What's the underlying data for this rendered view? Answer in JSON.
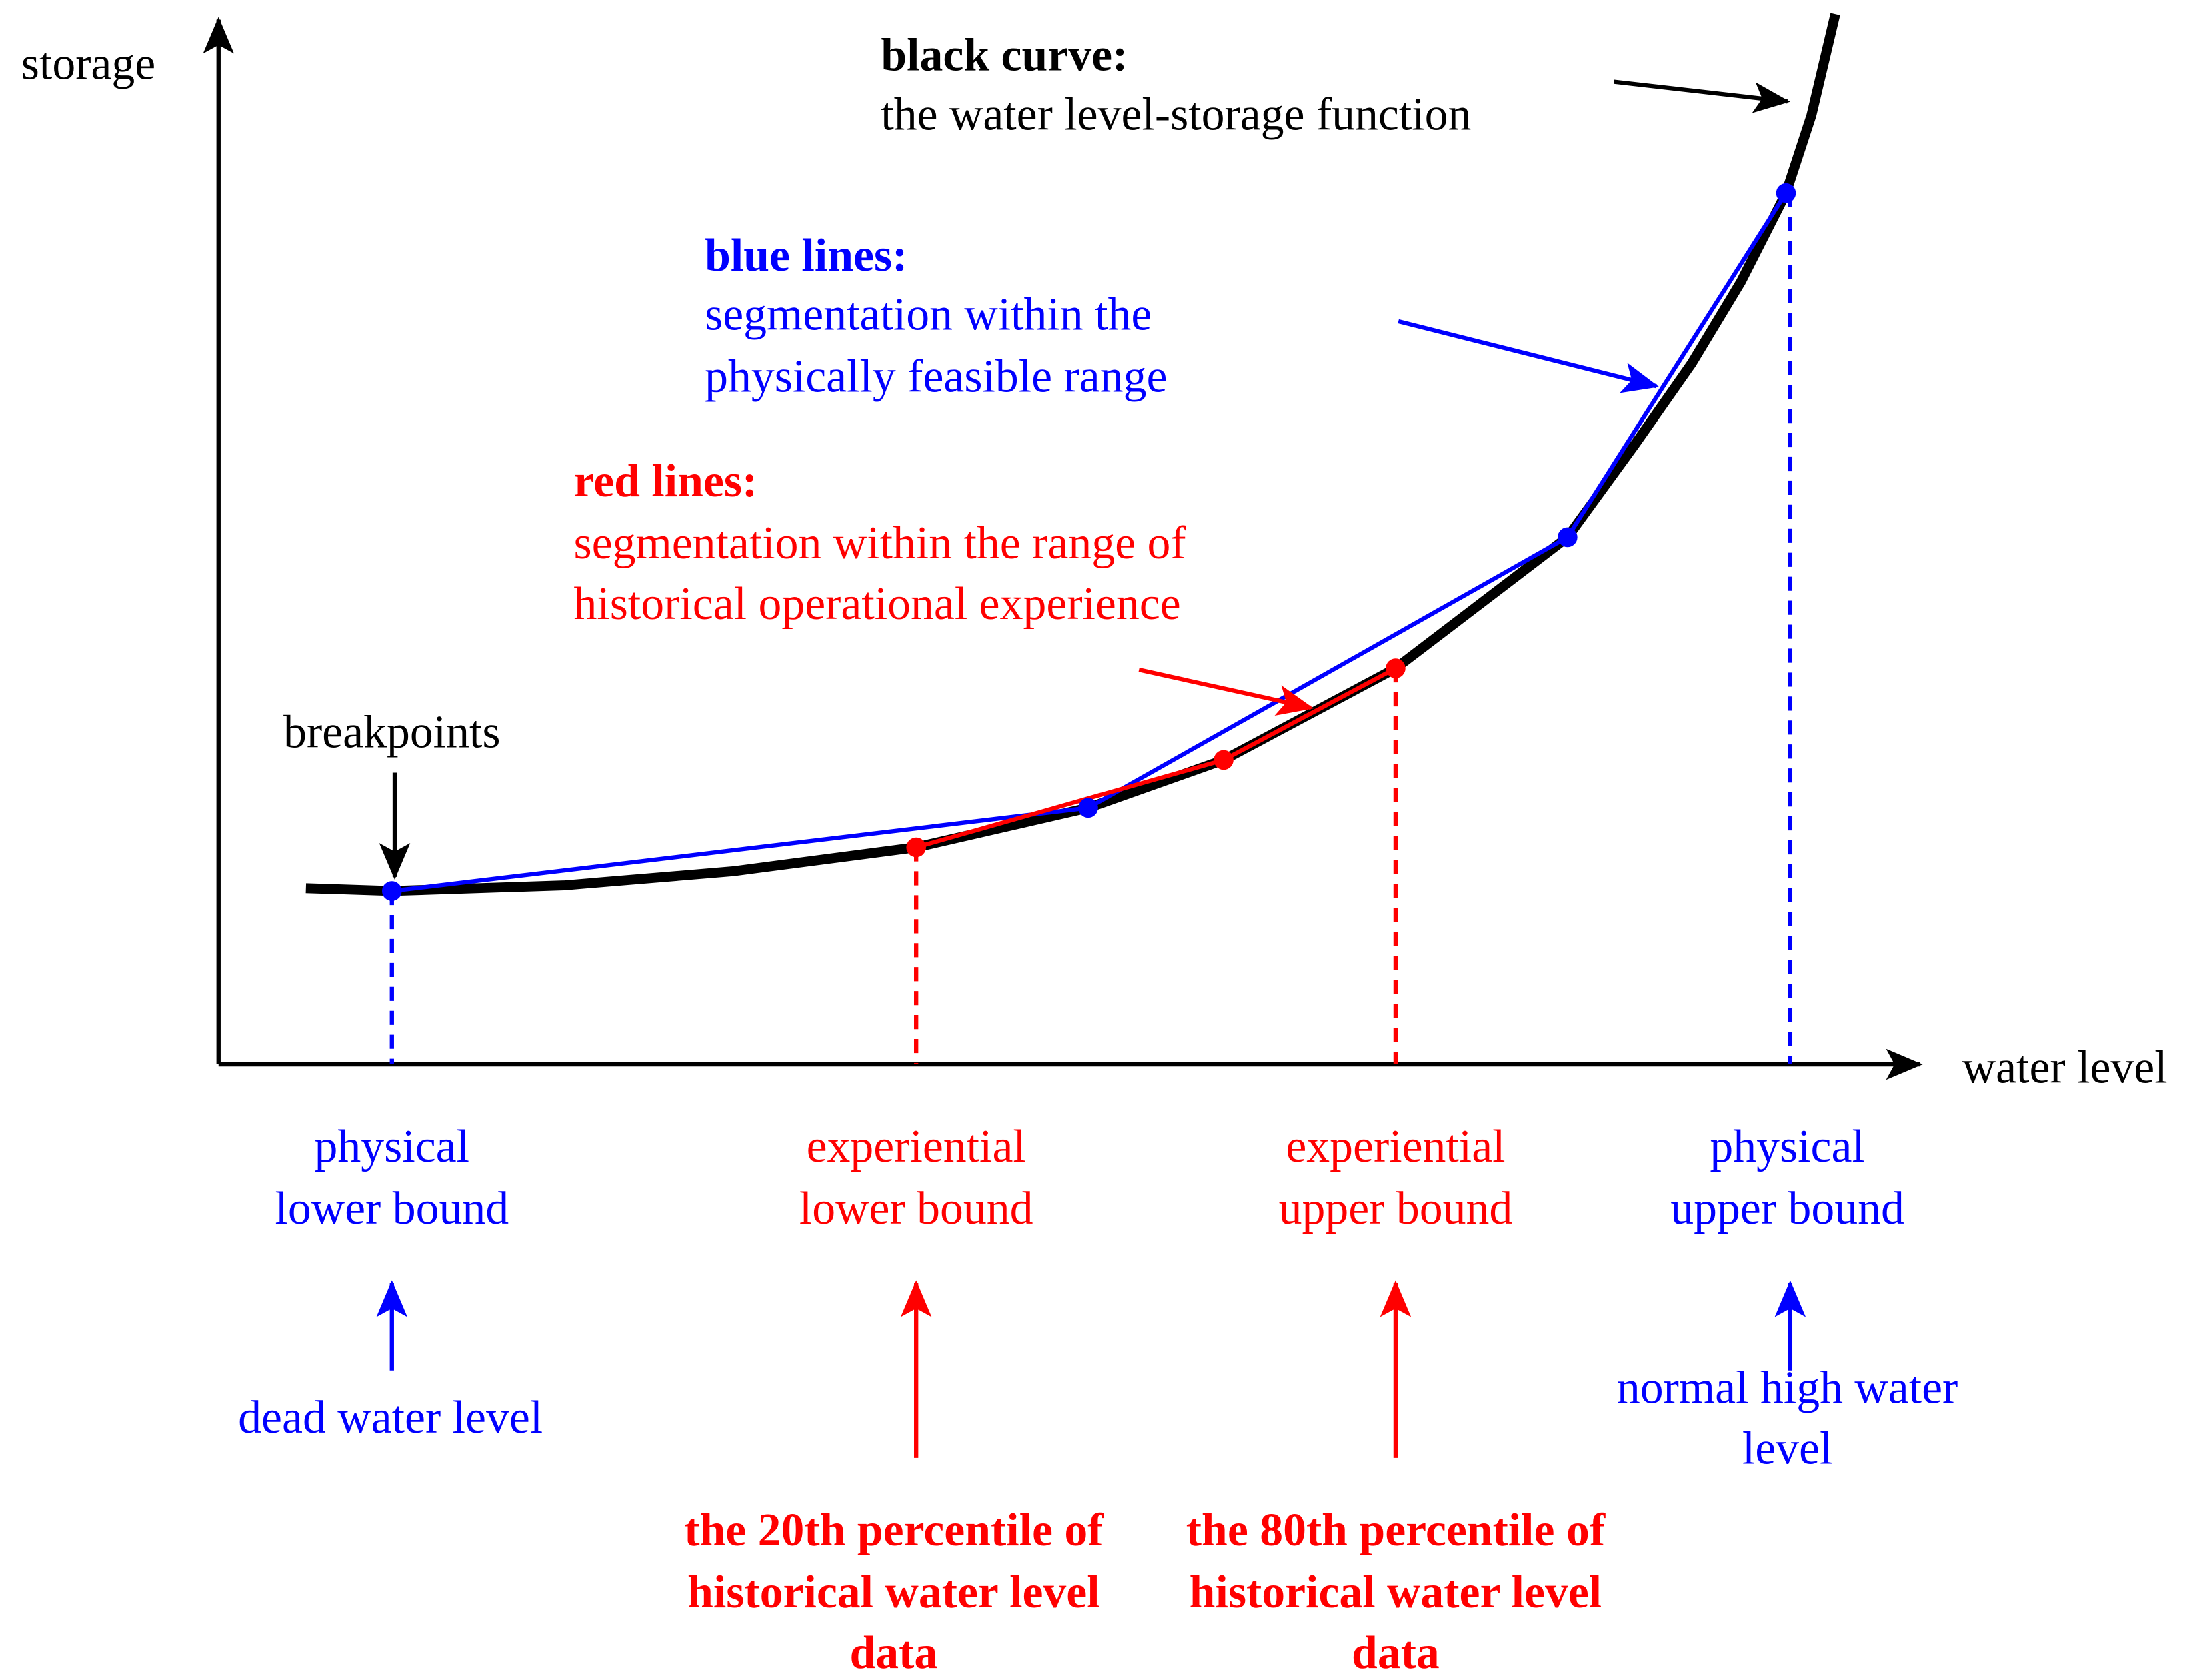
{
  "axes": {
    "y_label": "storage",
    "x_label": "water level"
  },
  "legend": {
    "black": {
      "title": "black curve:",
      "text": "the water level-storage function"
    },
    "blue": {
      "title": "blue lines:",
      "lines": [
        "segmentation within the",
        "physically feasible range"
      ]
    },
    "red": {
      "title": "red lines:",
      "lines": [
        "segmentation within the range of",
        "historical operational experience"
      ]
    }
  },
  "breakpoints_label": "breakpoints",
  "bounds": [
    {
      "lines": [
        "physical",
        "lower bound"
      ],
      "source": [
        "dead water level"
      ]
    },
    {
      "lines": [
        "experiential",
        "lower bound"
      ],
      "source": [
        "the 20th percentile of",
        "historical water level",
        "data"
      ]
    },
    {
      "lines": [
        "experiential",
        "upper bound"
      ],
      "source": [
        "the 80th percentile of",
        "historical water level",
        "data"
      ]
    },
    {
      "lines": [
        "physical",
        "upper bound"
      ],
      "source": [
        "normal high water",
        "level"
      ]
    }
  ]
}
